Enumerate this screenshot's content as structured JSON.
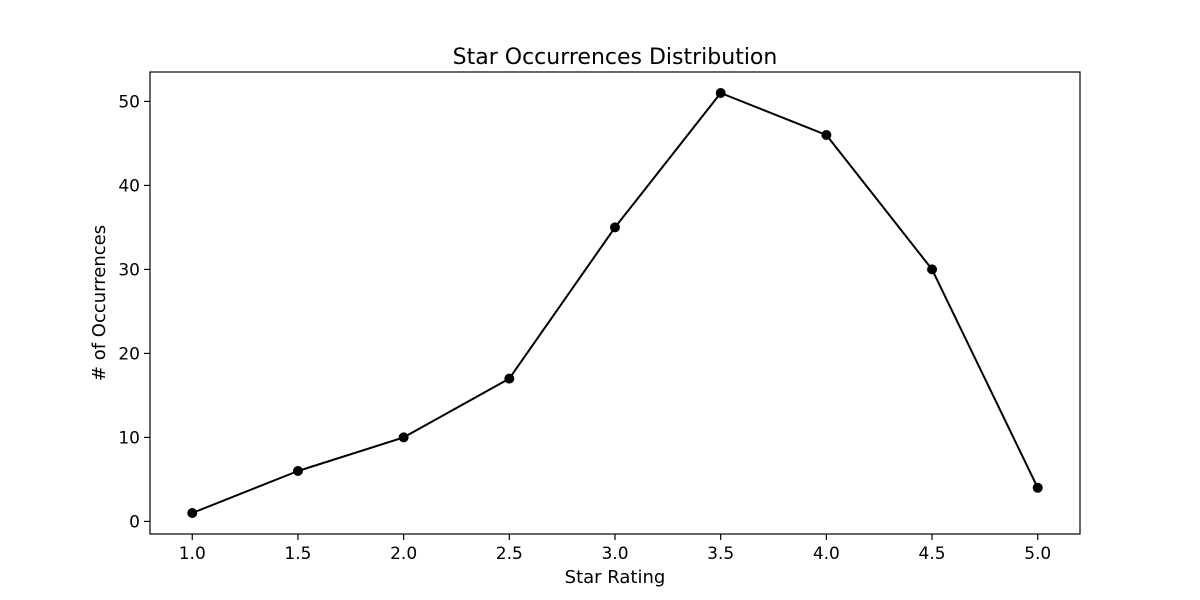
{
  "chart_data": {
    "type": "line",
    "title": "Star Occurrences Distribution",
    "xlabel": "Star Rating",
    "ylabel": "# of Occurrences",
    "x": [
      1.0,
      1.5,
      2.0,
      2.5,
      3.0,
      3.5,
      4.0,
      4.5,
      5.0
    ],
    "x_tick_labels": [
      "1.0",
      "1.5",
      "2.0",
      "2.5",
      "3.0",
      "3.5",
      "4.0",
      "4.5",
      "5.0"
    ],
    "series": [
      {
        "values": [
          1,
          6,
          10,
          17,
          35,
          51,
          46,
          30,
          4
        ],
        "color": "#000000",
        "marker": "circle"
      }
    ],
    "y_ticks": [
      0,
      10,
      20,
      30,
      40,
      50
    ],
    "y_tick_labels": [
      "0",
      "10",
      "20",
      "30",
      "40",
      "50"
    ],
    "xlim": [
      0.8,
      5.2
    ],
    "ylim": [
      -1.5,
      53.5
    ],
    "grid": false,
    "legend": "none"
  }
}
